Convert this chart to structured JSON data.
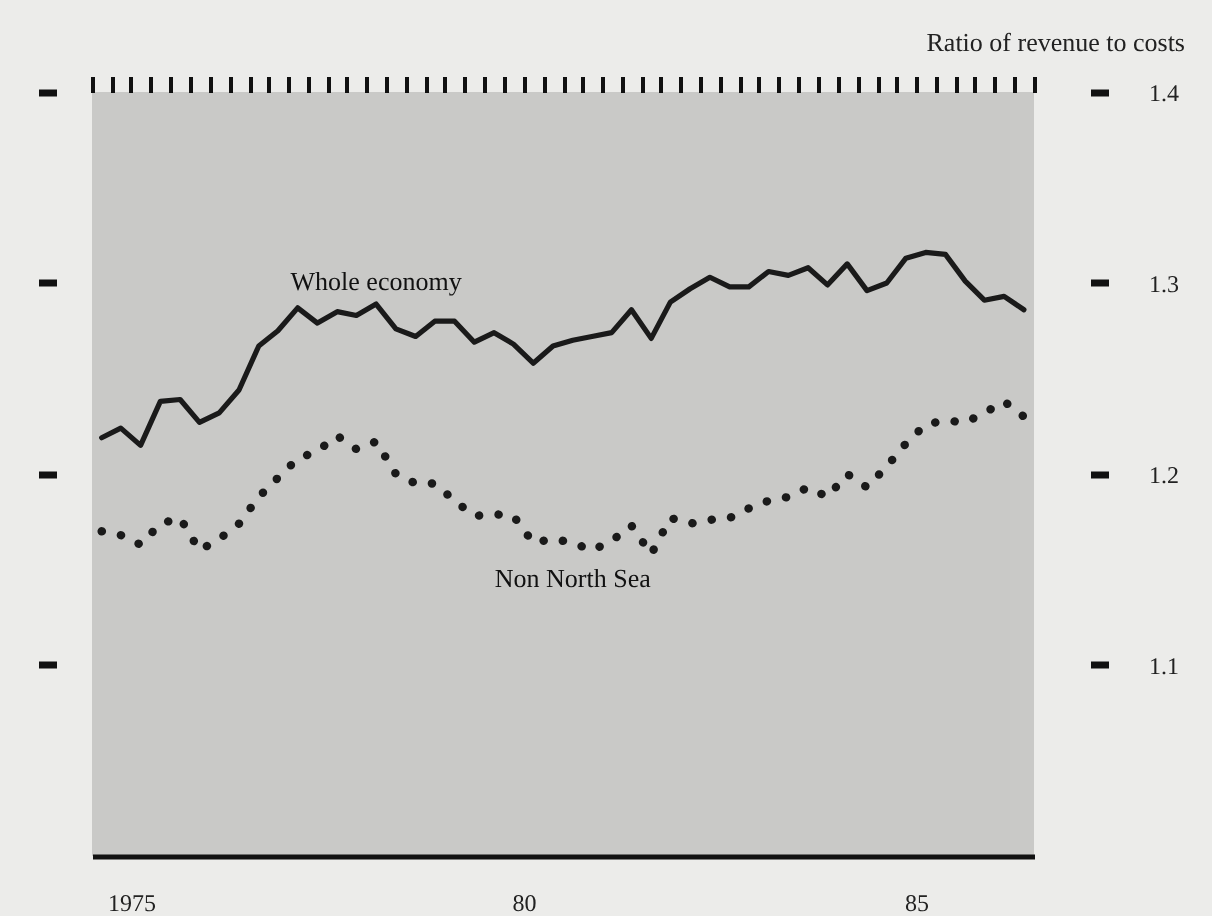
{
  "chart_data": {
    "type": "line",
    "ylabel": "Ratio of revenue to costs",
    "x": [
      "1975-02-15",
      "1975-05-15",
      "1975-08-15",
      "1975-11-15",
      "1976-02-15",
      "1976-05-15",
      "1976-08-15",
      "1976-11-15",
      "1977-02-15",
      "1977-05-15",
      "1977-08-15",
      "1977-11-15",
      "1978-02-15",
      "1978-05-15",
      "1978-08-15",
      "1978-11-15",
      "1979-02-15",
      "1979-05-15",
      "1979-08-15",
      "1979-11-15",
      "1980-02-15",
      "1980-05-15",
      "1980-08-15",
      "1980-11-15",
      "1981-02-15",
      "1981-05-15",
      "1981-08-15",
      "1981-11-15",
      "1982-02-15",
      "1982-05-15",
      "1982-08-15",
      "1982-11-15",
      "1983-02-15",
      "1983-05-15",
      "1983-08-15",
      "1983-11-15",
      "1984-02-15",
      "1984-05-15",
      "1984-08-15",
      "1984-11-15",
      "1985-02-15",
      "1985-05-15",
      "1985-08-15",
      "1985-11-15",
      "1986-02-15",
      "1986-05-15",
      "1986-08-15",
      "1986-11-15"
    ],
    "series": [
      {
        "name": "Whole economy",
        "color": "#1a1a1a",
        "line_style": "solid",
        "values": [
          1.219,
          1.224,
          1.215,
          1.238,
          1.239,
          1.227,
          1.232,
          1.244,
          1.267,
          1.275,
          1.287,
          1.279,
          1.285,
          1.283,
          1.289,
          1.276,
          1.272,
          1.28,
          1.28,
          1.269,
          1.274,
          1.268,
          1.258,
          1.267,
          1.27,
          1.272,
          1.274,
          1.286,
          1.271,
          1.29,
          1.297,
          1.303,
          1.298,
          1.298,
          1.306,
          1.304,
          1.308,
          1.299,
          1.31,
          1.296,
          1.3,
          1.313,
          1.316,
          1.315,
          1.301,
          1.291,
          1.293,
          1.286
        ]
      },
      {
        "name": "Non North Sea",
        "color": "#1a1a1a",
        "line_style": "dotted",
        "values": [
          1.17,
          1.168,
          1.163,
          1.174,
          1.177,
          1.16,
          1.166,
          1.174,
          1.188,
          1.198,
          1.208,
          1.212,
          1.22,
          1.213,
          1.217,
          1.2,
          1.195,
          1.195,
          1.186,
          1.178,
          1.179,
          1.178,
          1.164,
          1.166,
          1.164,
          1.16,
          1.165,
          1.173,
          1.158,
          1.177,
          1.174,
          1.176,
          1.177,
          1.182,
          1.186,
          1.188,
          1.193,
          1.188,
          1.2,
          1.193,
          1.204,
          1.216,
          1.226,
          1.228,
          1.227,
          1.232,
          1.238,
          1.23
        ]
      }
    ],
    "xlim": [
      "1975-01-01",
      "1987-01-01"
    ],
    "xticks": [
      {
        "value": "1975-01-01",
        "label": null
      },
      {
        "value": "1975-04-01",
        "label": null
      },
      {
        "value": "1975-07-01",
        "label": "1975"
      },
      {
        "value": "1975-10-01",
        "label": null
      },
      {
        "value": "1976-01-01",
        "label": null
      },
      {
        "value": "1976-04-01",
        "label": null
      },
      {
        "value": "1976-07-01",
        "label": null
      },
      {
        "value": "1976-10-01",
        "label": null
      },
      {
        "value": "1977-01-01",
        "label": null
      },
      {
        "value": "1977-04-01",
        "label": null
      },
      {
        "value": "1977-07-01",
        "label": null
      },
      {
        "value": "1977-10-01",
        "label": null
      },
      {
        "value": "1978-01-01",
        "label": null
      },
      {
        "value": "1978-04-01",
        "label": null
      },
      {
        "value": "1978-07-01",
        "label": null
      },
      {
        "value": "1978-10-01",
        "label": null
      },
      {
        "value": "1979-01-01",
        "label": null
      },
      {
        "value": "1979-04-01",
        "label": null
      },
      {
        "value": "1979-07-01",
        "label": null
      },
      {
        "value": "1979-10-01",
        "label": null
      },
      {
        "value": "1980-01-01",
        "label": null
      },
      {
        "value": "1980-04-01",
        "label": null
      },
      {
        "value": "1980-07-01",
        "label": "80"
      },
      {
        "value": "1980-10-01",
        "label": null
      },
      {
        "value": "1981-01-01",
        "label": null
      },
      {
        "value": "1981-04-01",
        "label": null
      },
      {
        "value": "1981-07-01",
        "label": null
      },
      {
        "value": "1981-10-01",
        "label": null
      },
      {
        "value": "1982-01-01",
        "label": null
      },
      {
        "value": "1982-04-01",
        "label": null
      },
      {
        "value": "1982-07-01",
        "label": null
      },
      {
        "value": "1982-10-01",
        "label": null
      },
      {
        "value": "1983-01-01",
        "label": null
      },
      {
        "value": "1983-04-01",
        "label": null
      },
      {
        "value": "1983-07-01",
        "label": null
      },
      {
        "value": "1983-10-01",
        "label": null
      },
      {
        "value": "1984-01-01",
        "label": null
      },
      {
        "value": "1984-04-01",
        "label": null
      },
      {
        "value": "1984-07-01",
        "label": null
      },
      {
        "value": "1984-10-01",
        "label": null
      },
      {
        "value": "1985-01-01",
        "label": null
      },
      {
        "value": "1985-04-01",
        "label": null
      },
      {
        "value": "1985-07-01",
        "label": "85"
      },
      {
        "value": "1985-10-01",
        "label": null
      },
      {
        "value": "1986-01-01",
        "label": null
      },
      {
        "value": "1986-04-01",
        "label": null
      },
      {
        "value": "1986-07-01",
        "label": null
      },
      {
        "value": "1986-10-01",
        "label": null
      },
      {
        "value": "1987-01-01",
        "label": null
      }
    ],
    "ylim": [
      1.0,
      1.4
    ],
    "yticks": [
      1.1,
      1.2,
      1.3,
      1.4
    ],
    "grid": false,
    "marker": "none"
  }
}
